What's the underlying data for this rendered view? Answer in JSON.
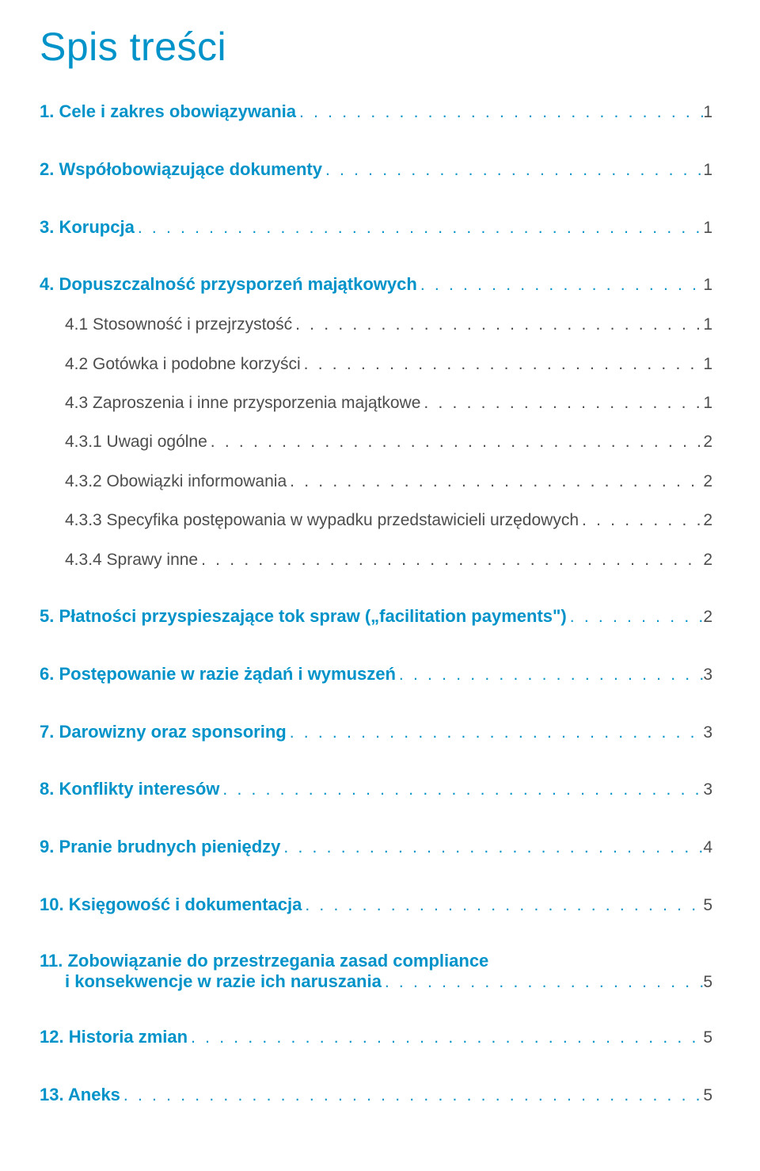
{
  "colors": {
    "accent": "#0093c9",
    "text": "#4d4d4d",
    "leader": "#4d4d4d",
    "leader_accent": "#0093c9",
    "page_num": "#4d4d4d"
  },
  "title": "Spis treści",
  "entries": [
    {
      "type": "main",
      "label": "1. Cele i zakres obowiązywania",
      "page": "1"
    },
    {
      "type": "main",
      "label": "2. Współobowiązujące dokumenty",
      "page": "1"
    },
    {
      "type": "main",
      "label": "3. Korupcja",
      "page": "1"
    },
    {
      "type": "main",
      "label": "4. Dopuszczalność przysporzeń majątkowych",
      "page": "1"
    },
    {
      "type": "sub",
      "label": "4.1   Stosowność i przejrzystość",
      "page": "1",
      "indent": 1
    },
    {
      "type": "sub",
      "label": "4.2   Gotówka i podobne korzyści",
      "page": "1",
      "indent": 1
    },
    {
      "type": "sub",
      "label": "4.3   Zaproszenia i inne przysporzenia majątkowe",
      "page": "1",
      "indent": 1
    },
    {
      "type": "sub",
      "label": "4.3.1  Uwagi ogólne",
      "page": "2",
      "indent": 1
    },
    {
      "type": "sub",
      "label": "4.3.2  Obowiązki informowania",
      "page": "2",
      "indent": 1
    },
    {
      "type": "sub",
      "label": "4.3.3  Specyfika postępowania w wypadku przedstawicieli urzędowych",
      "page": "2",
      "indent": 1
    },
    {
      "type": "sub",
      "label": "4.3.4  Sprawy inne",
      "page": "2",
      "indent": 1,
      "last": true
    },
    {
      "type": "main",
      "label": "5. Płatności przyspieszające tok spraw („facilitation payments\")",
      "page": "2"
    },
    {
      "type": "main",
      "label": "6. Postępowanie w razie żądań i wymuszeń",
      "page": "3"
    },
    {
      "type": "main",
      "label": "7. Darowizny oraz sponsoring",
      "page": "3"
    },
    {
      "type": "main",
      "label": "8. Konflikty interesów",
      "page": "3"
    },
    {
      "type": "main",
      "label": "9. Pranie brudnych pieniędzy",
      "page": "4"
    },
    {
      "type": "main",
      "label": "10. Księgowość i dokumentacja",
      "page": "5"
    },
    {
      "type": "main-multi",
      "label1": "11. Zobowiązanie do przestrzegania zasad compliance",
      "label2": "i konsekwencje w razie ich naruszania",
      "page": "5",
      "indent2": 1
    },
    {
      "type": "main",
      "label": "12. Historia zmian",
      "page": "5"
    },
    {
      "type": "main",
      "label": "13. Aneks",
      "page": "5"
    }
  ],
  "dots": ". . . . . . . . . . . . . . . . . . . . . . . . . . . . . . . . . . . . . . . . . . . . . . . . . . . . . . . . . . . . . . . . . . . . . . . . . . . . . . . . . . . . . . . . . . . . . . . . . . . . . . . . . . . . . . . . . . . . . . . . . . . . . . . . . . . . . . . . . . . . . . . . ."
}
